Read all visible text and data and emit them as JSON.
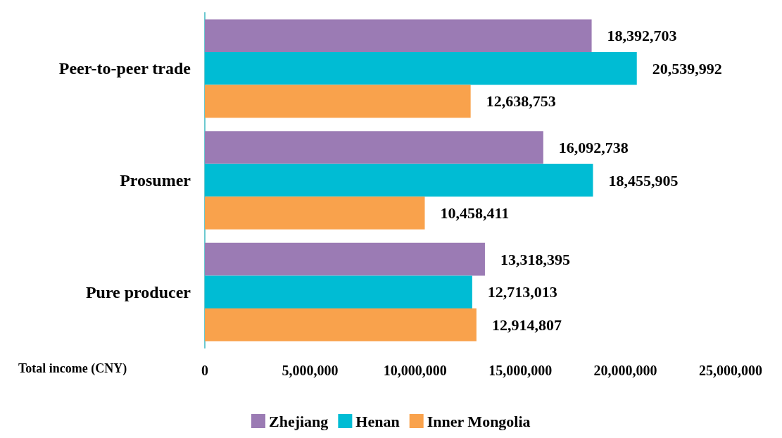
{
  "chart_data": {
    "type": "bar",
    "orientation": "horizontal",
    "xlabel": "Total income (CNY)",
    "categories": [
      "Peer-to-peer trade",
      "Prosumer",
      "Pure producer"
    ],
    "series": [
      {
        "name": "Zhejiang",
        "color": "#9b7bb4",
        "values": [
          18392703,
          16092738,
          13318395
        ],
        "value_labels": [
          "18,392,703",
          "16,092,738",
          "13,318,395"
        ]
      },
      {
        "name": "Henan",
        "color": "#00bcd4",
        "values": [
          20539992,
          18455905,
          12713013
        ],
        "value_labels": [
          "20,539,992",
          "18,455,905",
          "12,713,013"
        ]
      },
      {
        "name": "Inner Mongolia",
        "color": "#f9a24c",
        "values": [
          12638753,
          10458411,
          12914807
        ],
        "value_labels": [
          "12,638,753",
          "10,458,411",
          "12,914,807"
        ]
      }
    ],
    "xlim": [
      0,
      25000000
    ],
    "xticks": [
      0,
      {
        "value": 5000000,
        "label": "5,000,000"
      },
      {
        "value": 10000000,
        "label": "10,000,000"
      },
      {
        "value": 15000000,
        "label": "15,000,000"
      },
      {
        "value": 20000000,
        "label": "20,000,000"
      },
      {
        "value": 25000000,
        "label": "25,000,000"
      }
    ],
    "grid": false,
    "legend": "bottom"
  }
}
